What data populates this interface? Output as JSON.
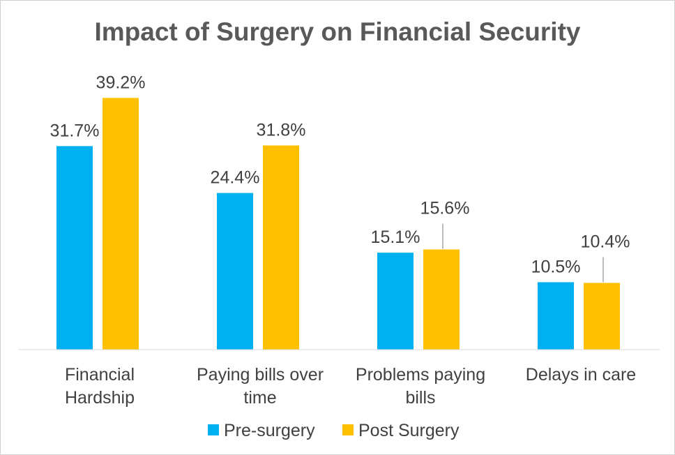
{
  "chart_data": {
    "type": "bar",
    "title": "Impact of Surgery on Financial Security",
    "categories": [
      [
        "Financial",
        "Hardship"
      ],
      [
        "Paying bills over",
        "time"
      ],
      [
        "Problems paying",
        "bills"
      ],
      [
        "Delays in care"
      ]
    ],
    "series": [
      {
        "name": "Pre-surgery",
        "color": "#00B0F0",
        "values": [
          31.7,
          24.4,
          15.1,
          10.5
        ],
        "labels": [
          "31.7%",
          "24.4%",
          "15.1%",
          "10.5%"
        ]
      },
      {
        "name": "Post Surgery",
        "color": "#FFC000",
        "values": [
          39.2,
          31.8,
          15.6,
          10.4
        ],
        "labels": [
          "39.2%",
          "31.8%",
          "15.6%",
          "10.4%"
        ]
      }
    ],
    "ylim": [
      0,
      40
    ],
    "xlabel": "",
    "ylabel": "",
    "grid": false,
    "legend": "bottom",
    "axis_color": "#D9D9D9",
    "leader_color": "#A6A6A6"
  }
}
